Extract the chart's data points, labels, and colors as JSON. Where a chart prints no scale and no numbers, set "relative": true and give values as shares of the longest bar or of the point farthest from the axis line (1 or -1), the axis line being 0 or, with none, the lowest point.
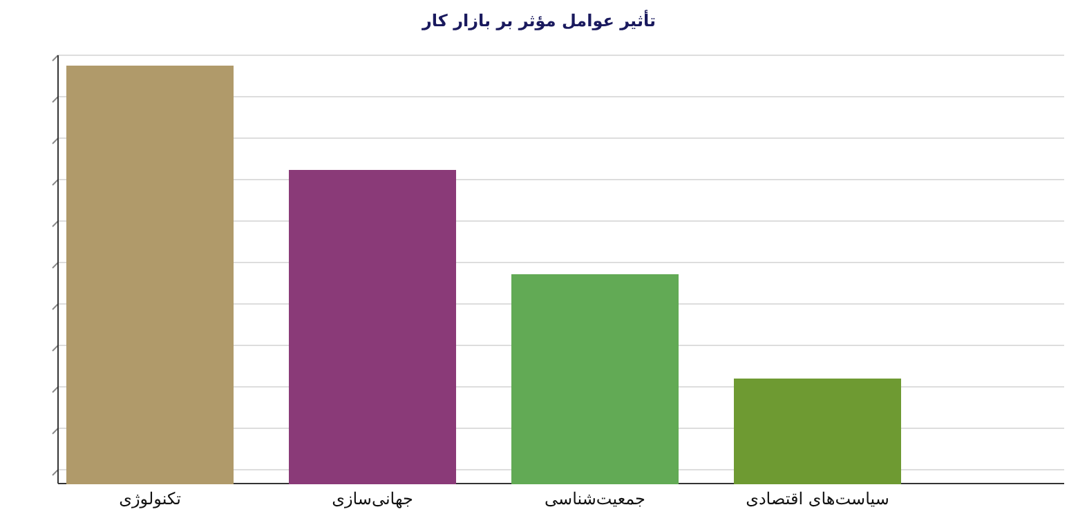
{
  "chart_data": {
    "type": "bar",
    "title": "تأثیر عوامل مؤثر بر بازار کار",
    "categories": [
      "تکنولوژی",
      "جهانی‌سازی",
      "جمعیت‌شناسی",
      "سیاست‌های اقتصادی"
    ],
    "values": [
      1,
      0.75,
      0.5,
      0.25
    ],
    "colors": [
      "#b09a6a",
      "#8a3a78",
      "#62aa55",
      "#6e9a32"
    ],
    "relative": true,
    "grid": "y"
  }
}
